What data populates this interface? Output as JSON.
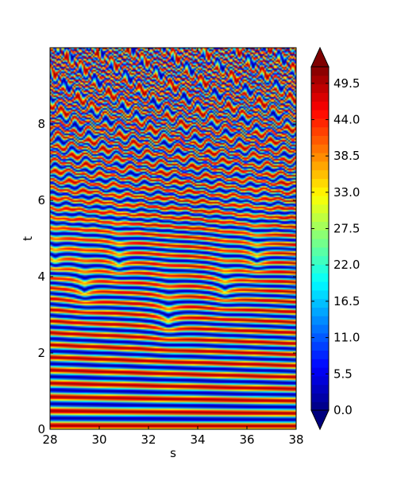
{
  "chart_data": {
    "type": "heatmap",
    "title": "",
    "xlabel": "s",
    "ylabel": "t",
    "xlim": [
      28,
      38
    ],
    "ylim": [
      0,
      10
    ],
    "xticks": [
      28,
      30,
      32,
      34,
      36,
      38
    ],
    "xtick_labels": [
      "28",
      "30",
      "32",
      "34",
      "36",
      "38"
    ],
    "yticks": [
      0,
      2,
      4,
      6,
      8
    ],
    "ytick_labels": [
      "0",
      "2",
      "4",
      "6",
      "8"
    ],
    "colormap": "jet",
    "colorbar": {
      "min": 0.0,
      "max": 52.0,
      "extend": "both",
      "ticks": [
        0.0,
        5.5,
        11.0,
        16.5,
        22.0,
        27.5,
        33.0,
        38.5,
        44.0,
        49.5
      ],
      "tick_labels": [
        "0.0",
        "5.5",
        "11.0",
        "16.5",
        "22.0",
        "27.5",
        "33.0",
        "38.5",
        "44.0",
        "49.5"
      ],
      "under_color": "#00007f",
      "over_color": "#7f0000"
    },
    "cusp_features": [
      {
        "s": 32.8,
        "t": 2.8
      },
      {
        "s": 29.4,
        "t": 3.6
      },
      {
        "s": 35.1,
        "t": 3.6
      },
      {
        "s": 30.8,
        "t": 4.3
      },
      {
        "s": 36.4,
        "t": 4.4
      },
      {
        "s": 28.2,
        "t": 4.4
      }
    ]
  }
}
